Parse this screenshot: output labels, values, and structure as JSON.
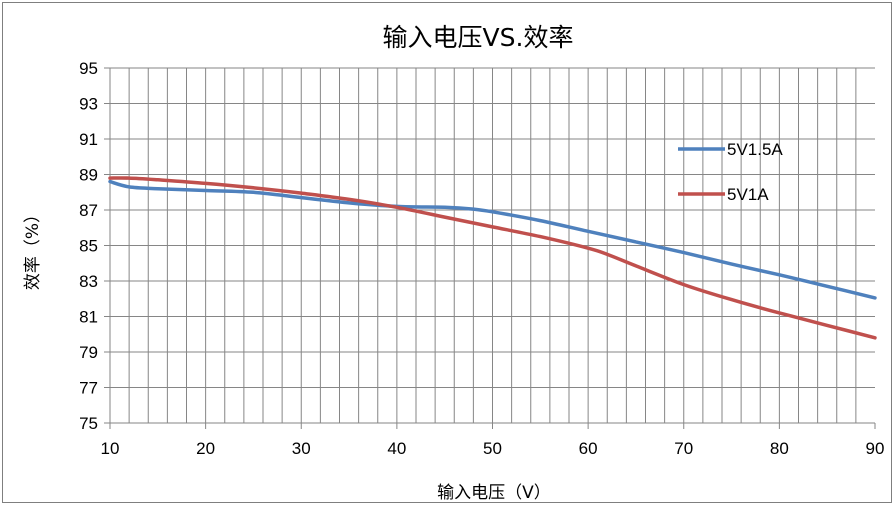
{
  "chart_data": {
    "type": "line",
    "title": "输入电压VS.效率",
    "xlabel": "输入电压（V）",
    "ylabel": "效率（%）",
    "xlim": [
      10,
      90
    ],
    "ylim": [
      75,
      95
    ],
    "x_ticks": [
      10,
      20,
      30,
      40,
      50,
      60,
      70,
      80,
      90
    ],
    "y_ticks": [
      75,
      77,
      79,
      81,
      83,
      85,
      87,
      89,
      91,
      93,
      95
    ],
    "grid": true,
    "legend_position": "right",
    "series": [
      {
        "name": "5V1.5A",
        "color": "#4f81bd",
        "x": [
          10,
          12,
          15,
          20,
          25,
          30,
          35,
          40,
          45,
          48,
          50,
          55,
          60,
          65,
          70,
          75,
          80,
          85,
          90
        ],
        "y": [
          88.6,
          88.3,
          88.2,
          88.1,
          88.0,
          87.7,
          87.4,
          87.2,
          87.15,
          87.05,
          86.9,
          86.4,
          85.8,
          85.2,
          84.6,
          83.95,
          83.35,
          82.7,
          82.05
        ]
      },
      {
        "name": "5V1A",
        "color": "#c0504d",
        "x": [
          10,
          12,
          15,
          20,
          25,
          30,
          35,
          40,
          45,
          50,
          55,
          60,
          62,
          65,
          70,
          75,
          80,
          85,
          90
        ],
        "y": [
          88.8,
          88.8,
          88.7,
          88.5,
          88.25,
          87.95,
          87.6,
          87.15,
          86.6,
          86.05,
          85.5,
          84.85,
          84.5,
          83.85,
          82.8,
          81.95,
          81.2,
          80.5,
          79.8
        ]
      }
    ]
  }
}
